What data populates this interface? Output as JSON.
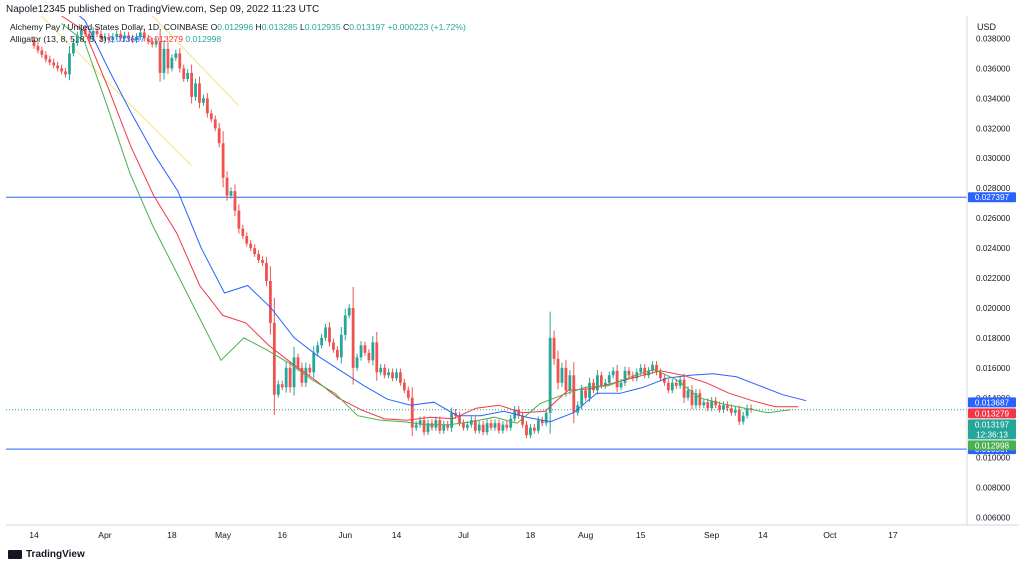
{
  "header": {
    "publisher": "Napole12345 published on TradingView.com, Sep 09, 2022 11:23 UTC"
  },
  "legend": {
    "title": "Alchemy Pay / United States Dollar, 1D, COINBASE",
    "o_label": "O",
    "o_value": "0.012996",
    "h_label": "H",
    "h_value": "0.013285",
    "l_label": "L",
    "l_value": "0.012935",
    "c_label": "C",
    "c_value": "0.013197",
    "change": "+0.000223 (+1.72%)",
    "indicator": "Alligator (13, 8, 5, 8, 5, 3)",
    "jaw_value": "0.013687",
    "teeth_value": "0.013279",
    "lips_value": "0.012998"
  },
  "footer": {
    "logo": "TradingView"
  },
  "colors": {
    "up": "#26a69a",
    "down": "#ef5350",
    "jaw": "#2962ff",
    "teeth": "#f23645",
    "lips": "#4caf50",
    "hline": "#2962ff",
    "trend": "#f7e07a"
  },
  "chart_data": {
    "type": "candlestick",
    "currency": "USD",
    "ylim": [
      0.0055,
      0.0395
    ],
    "grid": false,
    "y_ticks": [
      "0.038000",
      "0.036000",
      "0.034000",
      "0.032000",
      "0.030000",
      "0.028000",
      "0.026000",
      "0.024000",
      "0.022000",
      "0.020000",
      "0.018000",
      "0.016000",
      "0.014000",
      "0.012000",
      "0.010000",
      "0.008000",
      "0.006000"
    ],
    "x_ticks": [
      {
        "label": "14",
        "idx": 0
      },
      {
        "label": "Apr",
        "idx": 18
      },
      {
        "label": "18",
        "idx": 35
      },
      {
        "label": "May",
        "idx": 48
      },
      {
        "label": "16",
        "idx": 63
      },
      {
        "label": "Jun",
        "idx": 79
      },
      {
        "label": "14",
        "idx": 92
      },
      {
        "label": "Jul",
        "idx": 109
      },
      {
        "label": "18",
        "idx": 126
      },
      {
        "label": "Aug",
        "idx": 140
      },
      {
        "label": "15",
        "idx": 154
      },
      {
        "label": "Sep",
        "idx": 172
      },
      {
        "label": "14",
        "idx": 185
      },
      {
        "label": "Oct",
        "idx": 202
      },
      {
        "label": "17",
        "idx": 218
      }
    ],
    "horizontal_lines": [
      {
        "value": 0.027397,
        "label": "0.027397"
      },
      {
        "value": 0.010567,
        "label": "0.010567"
      }
    ],
    "price_labels": [
      {
        "value": 0.013687,
        "label": "0.013687",
        "series": "jaw"
      },
      {
        "value": 0.013279,
        "label": "0.013279",
        "series": "teeth"
      },
      {
        "value": 0.013197,
        "label": "0.013197",
        "countdown": "12:36:13",
        "series": "price"
      },
      {
        "value": 0.012998,
        "label": "0.012998",
        "series": "lips"
      }
    ],
    "trendlines": [
      {
        "x": [
          -2,
          40
        ],
        "y": [
          0.0405,
          0.0295
        ]
      },
      {
        "x": [
          29,
          52
        ],
        "y": [
          0.0398,
          0.0335
        ]
      }
    ],
    "close": [
      0.0375,
      0.0372,
      0.0369,
      0.0366,
      0.0364,
      0.0362,
      0.036,
      0.0358,
      0.0356,
      0.037,
      0.0377,
      0.0382,
      0.0386,
      0.0383,
      0.038,
      0.0385,
      0.0383,
      0.038,
      0.0381,
      0.0379,
      0.0381,
      0.0383,
      0.038,
      0.0382,
      0.038,
      0.0379,
      0.0381,
      0.0384,
      0.038,
      0.0378,
      0.0376,
      0.0378,
      0.0357,
      0.0373,
      0.036,
      0.0367,
      0.037,
      0.036,
      0.0353,
      0.0357,
      0.0341,
      0.035,
      0.0337,
      0.034,
      0.033,
      0.0326,
      0.032,
      0.031,
      0.0287,
      0.0275,
      0.0278,
      0.0265,
      0.0253,
      0.0248,
      0.0243,
      0.024,
      0.0236,
      0.0232,
      0.023,
      0.0218,
      0.019,
      0.0142,
      0.0149,
      0.0147,
      0.016,
      0.0147,
      0.0167,
      0.016,
      0.015,
      0.016,
      0.0157,
      0.017,
      0.0175,
      0.018,
      0.0187,
      0.0177,
      0.0172,
      0.0167,
      0.0182,
      0.0195,
      0.02,
      0.016,
      0.0167,
      0.0175,
      0.017,
      0.0165,
      0.0177,
      0.0157,
      0.016,
      0.0155,
      0.0157,
      0.0153,
      0.0157,
      0.015,
      0.0145,
      0.014,
      0.012,
      0.0122,
      0.0125,
      0.0117,
      0.0123,
      0.012,
      0.0125,
      0.0118,
      0.0122,
      0.012,
      0.013,
      0.0128,
      0.0123,
      0.012,
      0.0122,
      0.0125,
      0.0118,
      0.0122,
      0.0117,
      0.0123,
      0.012,
      0.0123,
      0.0118,
      0.0122,
      0.012,
      0.0126,
      0.0132,
      0.0128,
      0.0122,
      0.0115,
      0.012,
      0.0118,
      0.0125,
      0.0123,
      0.013,
      0.018,
      0.0166,
      0.015,
      0.016,
      0.0145,
      0.0155,
      0.013,
      0.0135,
      0.0145,
      0.014,
      0.015,
      0.0145,
      0.0155,
      0.0148,
      0.015,
      0.0155,
      0.0158,
      0.0147,
      0.015,
      0.0158,
      0.0155,
      0.0153,
      0.0157,
      0.016,
      0.0155,
      0.0158,
      0.0162,
      0.0157,
      0.0153,
      0.015,
      0.0145,
      0.015,
      0.0148,
      0.0152,
      0.014,
      0.0145,
      0.0135,
      0.0143,
      0.0135,
      0.0137,
      0.0133,
      0.0138,
      0.0135,
      0.0132,
      0.0135,
      0.0133,
      0.013,
      0.0132,
      0.0124,
      0.0128,
      0.0133,
      0.0132
    ],
    "series": [
      {
        "name": "Alligator Jaw (13, 8)",
        "x_start": 7,
        "x_end": 196,
        "y": [
          0.0405,
          0.0392,
          0.036,
          0.033,
          0.0302,
          0.0278,
          0.024,
          0.021,
          0.0215,
          0.02,
          0.018,
          0.0168,
          0.0158,
          0.0148,
          0.0139,
          0.0135,
          0.0137,
          0.0128,
          0.0128,
          0.0131,
          0.0127,
          0.0124,
          0.013,
          0.0143,
          0.0143,
          0.0147,
          0.0153,
          0.0155,
          0.0156,
          0.0154,
          0.0148,
          0.0142,
          0.0138
        ]
      },
      {
        "name": "Alligator Teeth (8, 5)",
        "x_start": 7,
        "x_end": 194,
        "y": [
          0.0395,
          0.0385,
          0.0348,
          0.0308,
          0.0275,
          0.025,
          0.0215,
          0.0195,
          0.019,
          0.0175,
          0.0163,
          0.0152,
          0.014,
          0.0132,
          0.0126,
          0.0125,
          0.0127,
          0.0126,
          0.0133,
          0.0135,
          0.013,
          0.0131,
          0.0145,
          0.0146,
          0.015,
          0.0154,
          0.0158,
          0.0155,
          0.015,
          0.0143,
          0.0138,
          0.0134,
          0.0134
        ]
      },
      {
        "name": "Alligator Lips (5, 3)",
        "x_start": 7,
        "x_end": 192,
        "y": [
          0.039,
          0.0378,
          0.0335,
          0.029,
          0.0255,
          0.0225,
          0.0195,
          0.0165,
          0.018,
          0.0172,
          0.0163,
          0.0152,
          0.0143,
          0.0128,
          0.0125,
          0.0124,
          0.0122,
          0.0122,
          0.0124,
          0.0127,
          0.0123,
          0.0136,
          0.0142,
          0.0147,
          0.0148,
          0.0154,
          0.0159,
          0.0152,
          0.014,
          0.0136,
          0.0133,
          0.013,
          0.0132
        ]
      }
    ]
  }
}
